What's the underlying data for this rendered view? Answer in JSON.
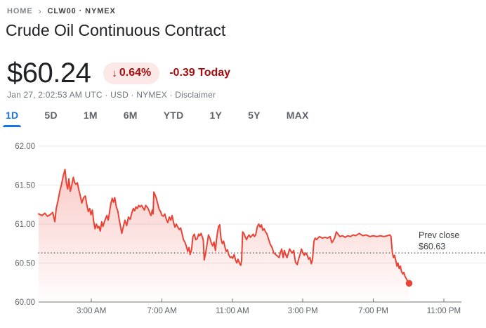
{
  "breadcrumb": {
    "home": "HOME",
    "separator": "›",
    "symbol": "CLW00 · NYMEX"
  },
  "header": {
    "title": "Crude Oil Continuous Contract"
  },
  "quote": {
    "price": "$60.24",
    "change_direction": "down",
    "arrow": "↓",
    "change_percent": "0.64%",
    "change_abs": "-0.39 Today",
    "meta_prefix": "Jan 27, 2:02:53 AM UTC · USD · NYMEX · ",
    "disclaimer": "Disclaimer",
    "down_text_color": "#a50e0e",
    "badge_bg_color": "#fce8e6"
  },
  "tabs": [
    {
      "label": "1D",
      "active": true
    },
    {
      "label": "5D",
      "active": false
    },
    {
      "label": "1M",
      "active": false
    },
    {
      "label": "6M",
      "active": false
    },
    {
      "label": "YTD",
      "active": false
    },
    {
      "label": "1Y",
      "active": false
    },
    {
      "label": "5Y",
      "active": false
    },
    {
      "label": "MAX",
      "active": false
    }
  ],
  "chart_data": {
    "type": "line",
    "title": "Crude Oil Continuous Contract 1D price",
    "x_unit": "hours_since_midnight",
    "ylim": [
      60,
      62
    ],
    "grid": "horizontal",
    "legend": "none",
    "line_color": "#ea4335",
    "accent_blue": "#1a73e8",
    "yticks": [
      {
        "value": 62.0,
        "label": "62.00"
      },
      {
        "value": 61.5,
        "label": "61.50"
      },
      {
        "value": 61.0,
        "label": "61.00"
      },
      {
        "value": 60.5,
        "label": "60.50"
      },
      {
        "value": 60.0,
        "label": "60.00"
      }
    ],
    "xticks": [
      {
        "hour": 3,
        "label": "3:00 AM"
      },
      {
        "hour": 7,
        "label": "7:00 AM"
      },
      {
        "hour": 11,
        "label": "11:00 AM"
      },
      {
        "hour": 15,
        "label": "3:00 PM"
      },
      {
        "hour": 19,
        "label": "7:00 PM"
      },
      {
        "hour": 23,
        "label": "11:00 PM"
      }
    ],
    "prev_close": {
      "label": "Prev close",
      "amount": "$60.63",
      "value": 60.63
    },
    "last_point": {
      "hour": 21.03,
      "price": 60.24
    },
    "points": [
      [
        0,
        61.13
      ],
      [
        0.2,
        61.11
      ],
      [
        0.35,
        61.14
      ],
      [
        0.5,
        61.1
      ],
      [
        0.65,
        61.12
      ],
      [
        0.8,
        61.15
      ],
      [
        0.92,
        61.03
      ],
      [
        1,
        61.2
      ],
      [
        1.1,
        61.3
      ],
      [
        1.2,
        61.42
      ],
      [
        1.3,
        61.51
      ],
      [
        1.4,
        61.62
      ],
      [
        1.5,
        61.7
      ],
      [
        1.58,
        61.52
      ],
      [
        1.65,
        61.45
      ],
      [
        1.72,
        61.58
      ],
      [
        1.8,
        61.42
      ],
      [
        1.88,
        61.5
      ],
      [
        1.97,
        61.6
      ],
      [
        2.05,
        61.53
      ],
      [
        2.12,
        61.51
      ],
      [
        2.2,
        61.53
      ],
      [
        2.28,
        61.44
      ],
      [
        2.35,
        61.38
      ],
      [
        2.45,
        61.27
      ],
      [
        2.55,
        61.34
      ],
      [
        2.65,
        61.36
      ],
      [
        2.75,
        61.23
      ],
      [
        2.82,
        61.16
      ],
      [
        2.9,
        61.2
      ],
      [
        2.97,
        61.12
      ],
      [
        3.05,
        61.18
      ],
      [
        3.12,
        61.04
      ],
      [
        3.2,
        60.94
      ],
      [
        3.28,
        61
      ],
      [
        3.35,
        60.95
      ],
      [
        3.42,
        60.97
      ],
      [
        3.5,
        60.91
      ],
      [
        3.58,
        61.03
      ],
      [
        3.65,
        60.97
      ],
      [
        3.72,
        61.02
      ],
      [
        3.8,
        61.07
      ],
      [
        3.87,
        61.11
      ],
      [
        3.95,
        61.05
      ],
      [
        4.1,
        61.26
      ],
      [
        4.18,
        61.33
      ],
      [
        4.25,
        61.28
      ],
      [
        4.32,
        61.34
      ],
      [
        4.4,
        61.23
      ],
      [
        4.5,
        61.16
      ],
      [
        4.58,
        61.05
      ],
      [
        4.65,
        60.97
      ],
      [
        4.72,
        60.88
      ],
      [
        4.8,
        60.96
      ],
      [
        4.9,
        61.05
      ],
      [
        5,
        60.98
      ],
      [
        5.1,
        61.09
      ],
      [
        5.2,
        61.06
      ],
      [
        5.3,
        61.15
      ],
      [
        5.38,
        61.2
      ],
      [
        5.45,
        61.17
      ],
      [
        5.52,
        61.22
      ],
      [
        5.6,
        61.2
      ],
      [
        5.68,
        61.24
      ],
      [
        5.76,
        61.22
      ],
      [
        5.84,
        61.24
      ],
      [
        5.92,
        61.21
      ],
      [
        6,
        61.18
      ],
      [
        6.08,
        61.24
      ],
      [
        6.15,
        61.22
      ],
      [
        6.22,
        61.2
      ],
      [
        6.3,
        61.15
      ],
      [
        6.38,
        61.11
      ],
      [
        6.45,
        61.18
      ],
      [
        6.5,
        61.13
      ],
      [
        6.54,
        61.41
      ],
      [
        6.6,
        61.38
      ],
      [
        6.68,
        61.33
      ],
      [
        6.76,
        61.26
      ],
      [
        6.84,
        61.19
      ],
      [
        6.92,
        61.16
      ],
      [
        7,
        61.11
      ],
      [
        7.08,
        61.1
      ],
      [
        7.16,
        61.13
      ],
      [
        7.25,
        61.06
      ],
      [
        7.33,
        61.02
      ],
      [
        7.42,
        61.09
      ],
      [
        7.5,
        61.05
      ],
      [
        7.58,
        61.11
      ],
      [
        7.66,
        61.02
      ],
      [
        7.74,
        60.96
      ],
      [
        7.82,
        61
      ],
      [
        7.9,
        60.96
      ],
      [
        7.98,
        60.93
      ],
      [
        8.06,
        60.95
      ],
      [
        8.14,
        60.88
      ],
      [
        8.22,
        60.8
      ],
      [
        8.3,
        60.77
      ],
      [
        8.38,
        60.72
      ],
      [
        8.46,
        60.65
      ],
      [
        8.54,
        60.7
      ],
      [
        8.6,
        60.61
      ],
      [
        8.68,
        60.67
      ],
      [
        8.76,
        60.84
      ],
      [
        8.84,
        60.87
      ],
      [
        8.92,
        60.8
      ],
      [
        9,
        60.81
      ],
      [
        9.08,
        60.87
      ],
      [
        9.15,
        60.85
      ],
      [
        9.22,
        60.88
      ],
      [
        9.3,
        60.83
      ],
      [
        9.35,
        60.79
      ],
      [
        9.4,
        60.54
      ],
      [
        9.48,
        60.63
      ],
      [
        9.56,
        60.74
      ],
      [
        9.64,
        60.86
      ],
      [
        9.72,
        60.82
      ],
      [
        9.8,
        60.76
      ],
      [
        9.88,
        60.72
      ],
      [
        9.96,
        60.77
      ],
      [
        10.04,
        60.66
      ],
      [
        10.1,
        60.8
      ],
      [
        10.16,
        60.9
      ],
      [
        10.22,
        60.97
      ],
      [
        10.28,
        60.99
      ],
      [
        10.35,
        60.82
      ],
      [
        10.42,
        60.75
      ],
      [
        10.5,
        60.78
      ],
      [
        10.58,
        60.7
      ],
      [
        10.65,
        60.65
      ],
      [
        10.72,
        60.67
      ],
      [
        10.8,
        60.6
      ],
      [
        10.88,
        60.57
      ],
      [
        10.95,
        60.58
      ],
      [
        11.02,
        60.56
      ],
      [
        11.1,
        60.61
      ],
      [
        11.18,
        60.54
      ],
      [
        11.25,
        60.5
      ],
      [
        11.32,
        60.55
      ],
      [
        11.4,
        60.5
      ],
      [
        11.47,
        60.47
      ],
      [
        11.52,
        60.53
      ],
      [
        11.58,
        60.9
      ],
      [
        11.65,
        60.88
      ],
      [
        11.72,
        60.84
      ],
      [
        11.8,
        60.8
      ],
      [
        11.88,
        60.84
      ],
      [
        11.95,
        60.86
      ],
      [
        12.02,
        60.83
      ],
      [
        12.1,
        60.85
      ],
      [
        12.18,
        60.87
      ],
      [
        12.25,
        60.84
      ],
      [
        12.32,
        60.86
      ],
      [
        12.42,
        60.97
      ],
      [
        12.5,
        61
      ],
      [
        12.58,
        60.96
      ],
      [
        12.65,
        60.99
      ],
      [
        12.72,
        60.92
      ],
      [
        12.8,
        60.94
      ],
      [
        12.88,
        60.9
      ],
      [
        12.95,
        60.88
      ],
      [
        13.05,
        60.81
      ],
      [
        13.15,
        60.74
      ],
      [
        13.25,
        60.7
      ],
      [
        13.35,
        60.63
      ],
      [
        13.45,
        60.61
      ],
      [
        13.55,
        60.59
      ],
      [
        13.65,
        60.57
      ],
      [
        13.72,
        60.63
      ],
      [
        13.8,
        60.68
      ],
      [
        13.88,
        60.57
      ],
      [
        13.95,
        60.66
      ],
      [
        14.02,
        60.61
      ],
      [
        14.1,
        60.57
      ],
      [
        14.18,
        60.63
      ],
      [
        14.25,
        60.68
      ],
      [
        14.32,
        60.65
      ],
      [
        14.4,
        60.63
      ],
      [
        14.48,
        60.66
      ],
      [
        14.58,
        60.51
      ],
      [
        14.68,
        60.48
      ],
      [
        14.76,
        60.55
      ],
      [
        14.84,
        60.61
      ],
      [
        14.92,
        60.68
      ],
      [
        15,
        60.63
      ],
      [
        15.08,
        60.6
      ],
      [
        15.16,
        60.63
      ],
      [
        15.25,
        60.6
      ],
      [
        15.33,
        60.55
      ],
      [
        15.4,
        60.57
      ],
      [
        15.48,
        60.49
      ],
      [
        15.55,
        60.55
      ],
      [
        15.63,
        60.78
      ],
      [
        15.7,
        60.82
      ],
      [
        15.78,
        60.8
      ],
      [
        15.85,
        60.82
      ],
      [
        15.95,
        60.84
      ],
      [
        16.1,
        60.82
      ],
      [
        16.25,
        60.83
      ],
      [
        16.4,
        60.82
      ],
      [
        16.55,
        60.84
      ],
      [
        16.65,
        60.76
      ],
      [
        16.8,
        60.82
      ],
      [
        16.9,
        60.9
      ],
      [
        17,
        60.87
      ],
      [
        17.1,
        60.84
      ],
      [
        17.25,
        60.85
      ],
      [
        17.4,
        60.83
      ],
      [
        17.55,
        60.85
      ],
      [
        17.7,
        60.84
      ],
      [
        17.85,
        60.86
      ],
      [
        18,
        60.85
      ],
      [
        18.2,
        60.88
      ],
      [
        18.4,
        60.85
      ],
      [
        18.6,
        60.86
      ],
      [
        18.8,
        60.84
      ],
      [
        19,
        60.85
      ],
      [
        19.2,
        60.84
      ],
      [
        19.4,
        60.85
      ],
      [
        19.6,
        60.84
      ],
      [
        19.8,
        60.85
      ],
      [
        19.94,
        60.86
      ],
      [
        20,
        60.84
      ],
      [
        20.08,
        60.63
      ],
      [
        20.15,
        60.57
      ],
      [
        20.2,
        60.6
      ],
      [
        20.27,
        60.54
      ],
      [
        20.34,
        60.46
      ],
      [
        20.4,
        60.5
      ],
      [
        20.47,
        60.43
      ],
      [
        20.53,
        60.46
      ],
      [
        20.6,
        60.39
      ],
      [
        20.67,
        60.36
      ],
      [
        20.73,
        60.38
      ],
      [
        20.8,
        60.33
      ],
      [
        20.87,
        60.3
      ],
      [
        20.94,
        60.27
      ],
      [
        21.03,
        60.24
      ]
    ]
  }
}
